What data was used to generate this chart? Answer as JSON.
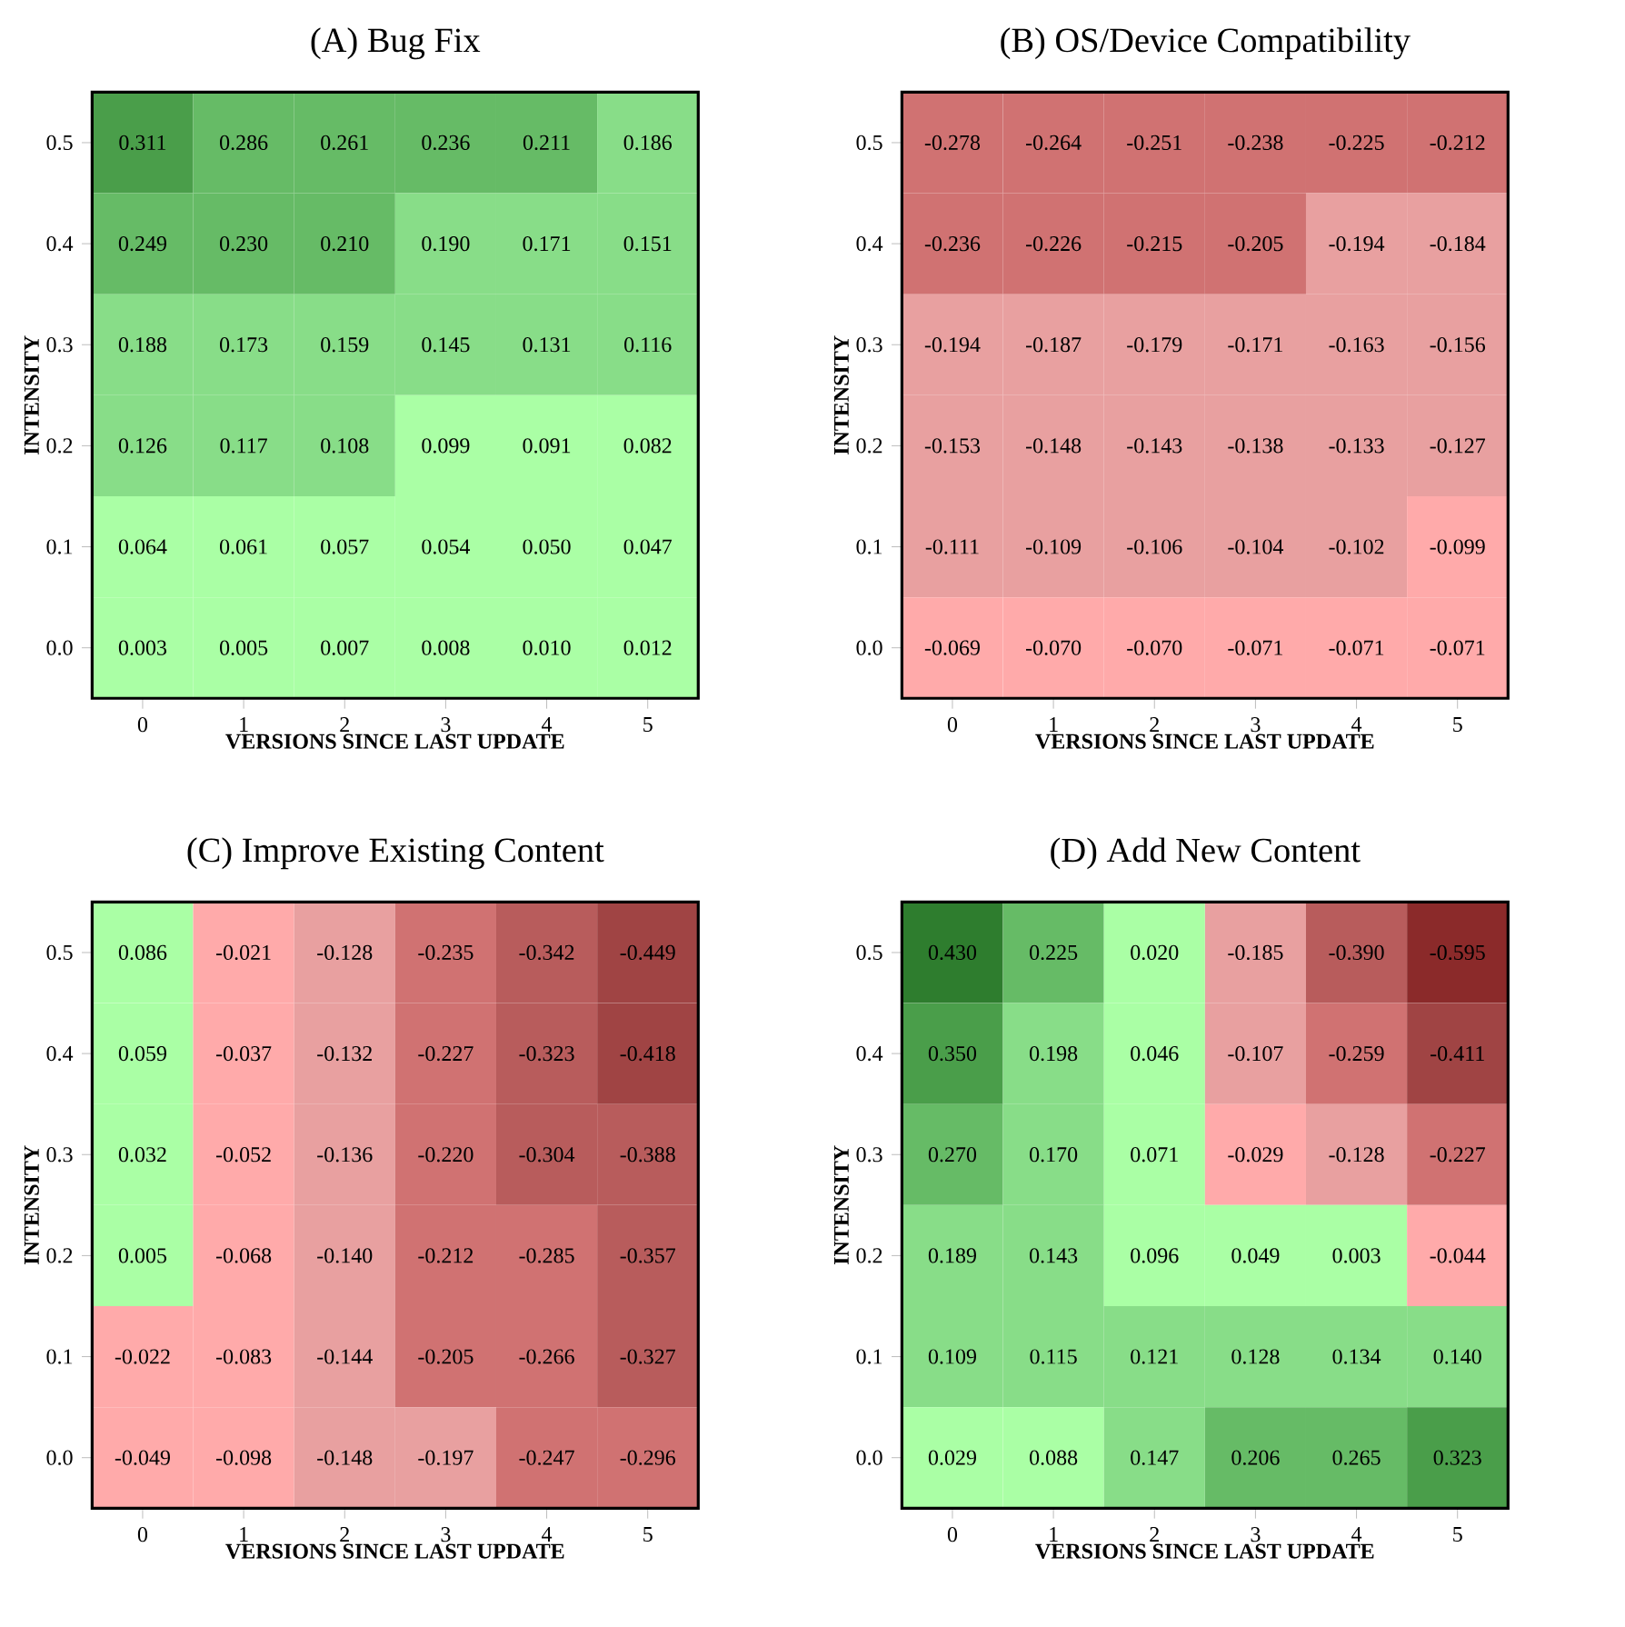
{
  "chart_data": [
    {
      "type": "heatmap",
      "title": "(A) Bug Fix",
      "xlabel": "VERSIONS SINCE LAST UPDATE",
      "ylabel": "INTENSITY",
      "categories": [
        "0",
        "1",
        "2",
        "3",
        "4",
        "5"
      ],
      "y_categories": [
        "0.5",
        "0.4",
        "0.3",
        "0.2",
        "0.1",
        "0.0"
      ],
      "data_labels": true,
      "cells": [
        [
          0.311,
          0.286,
          0.261,
          0.236,
          0.211,
          0.186
        ],
        [
          0.249,
          0.23,
          0.21,
          0.19,
          0.171,
          0.151
        ],
        [
          0.188,
          0.173,
          0.159,
          0.145,
          0.131,
          0.116
        ],
        [
          0.126,
          0.117,
          0.108,
          0.099,
          0.091,
          0.082
        ],
        [
          0.064,
          0.061,
          0.057,
          0.054,
          0.05,
          0.047
        ],
        [
          0.003,
          0.005,
          0.007,
          0.008,
          0.01,
          0.012
        ]
      ],
      "cell_labels": [
        [
          "0.311",
          "0.286",
          "0.261",
          "0.236",
          "0.211",
          "0.186"
        ],
        [
          "0.249",
          "0.230",
          "0.210",
          "0.190",
          "0.171",
          "0.151"
        ],
        [
          "0.188",
          "0.173",
          "0.159",
          "0.145",
          "0.131",
          "0.116"
        ],
        [
          "0.126",
          "0.117",
          "0.108",
          "0.099",
          "0.091",
          "0.082"
        ],
        [
          "0.064",
          "0.061",
          "0.057",
          "0.054",
          "0.050",
          "0.047"
        ],
        [
          "0.003",
          "0.005",
          "0.007",
          "0.008",
          "0.010",
          "0.012"
        ]
      ]
    },
    {
      "type": "heatmap",
      "title": "(B) OS/Device Compatibility",
      "xlabel": "VERSIONS SINCE LAST UPDATE",
      "ylabel": "INTENSITY",
      "categories": [
        "0",
        "1",
        "2",
        "3",
        "4",
        "5"
      ],
      "y_categories": [
        "0.5",
        "0.4",
        "0.3",
        "0.2",
        "0.1",
        "0.0"
      ],
      "data_labels": true,
      "cells": [
        [
          -0.278,
          -0.264,
          -0.251,
          -0.238,
          -0.225,
          -0.212
        ],
        [
          -0.236,
          -0.226,
          -0.215,
          -0.205,
          -0.194,
          -0.184
        ],
        [
          -0.194,
          -0.187,
          -0.179,
          -0.171,
          -0.163,
          -0.156
        ],
        [
          -0.153,
          -0.148,
          -0.143,
          -0.138,
          -0.133,
          -0.127
        ],
        [
          -0.111,
          -0.109,
          -0.106,
          -0.104,
          -0.102,
          -0.099
        ],
        [
          -0.069,
          -0.07,
          -0.07,
          -0.071,
          -0.071,
          -0.071
        ]
      ],
      "cell_labels": [
        [
          "-0.278",
          "-0.264",
          "-0.251",
          "-0.238",
          "-0.225",
          "-0.212"
        ],
        [
          "-0.236",
          "-0.226",
          "-0.215",
          "-0.205",
          "-0.194",
          "-0.184"
        ],
        [
          "-0.194",
          "-0.187",
          "-0.179",
          "-0.171",
          "-0.163",
          "-0.156"
        ],
        [
          "-0.153",
          "-0.148",
          "-0.143",
          "-0.138",
          "-0.133",
          "-0.127"
        ],
        [
          "-0.111",
          "-0.109",
          "-0.106",
          "-0.104",
          "-0.102",
          "-0.099"
        ],
        [
          "-0.069",
          "-0.070",
          "-0.070",
          "-0.071",
          "-0.071",
          "-0.071"
        ]
      ]
    },
    {
      "type": "heatmap",
      "title": "(C) Improve Existing Content",
      "xlabel": "VERSIONS SINCE LAST UPDATE",
      "ylabel": "INTENSITY",
      "categories": [
        "0",
        "1",
        "2",
        "3",
        "4",
        "5"
      ],
      "y_categories": [
        "0.5",
        "0.4",
        "0.3",
        "0.2",
        "0.1",
        "0.0"
      ],
      "data_labels": true,
      "cells": [
        [
          0.086,
          -0.021,
          -0.128,
          -0.235,
          -0.342,
          -0.449
        ],
        [
          0.059,
          -0.037,
          -0.132,
          -0.227,
          -0.323,
          -0.418
        ],
        [
          0.032,
          -0.052,
          -0.136,
          -0.22,
          -0.304,
          -0.388
        ],
        [
          0.005,
          -0.068,
          -0.14,
          -0.212,
          -0.285,
          -0.357
        ],
        [
          -0.022,
          -0.083,
          -0.144,
          -0.205,
          -0.266,
          -0.327
        ],
        [
          -0.049,
          -0.098,
          -0.148,
          -0.197,
          -0.247,
          -0.296
        ]
      ],
      "cell_labels": [
        [
          "0.086",
          "-0.021",
          "-0.128",
          "-0.235",
          "-0.342",
          "-0.449"
        ],
        [
          "0.059",
          "-0.037",
          "-0.132",
          "-0.227",
          "-0.323",
          "-0.418"
        ],
        [
          "0.032",
          "-0.052",
          "-0.136",
          "-0.220",
          "-0.304",
          "-0.388"
        ],
        [
          "0.005",
          "-0.068",
          "-0.140",
          "-0.212",
          "-0.285",
          "-0.357"
        ],
        [
          "-0.022",
          "-0.083",
          "-0.144",
          "-0.205",
          "-0.266",
          "-0.327"
        ],
        [
          "-0.049",
          "-0.098",
          "-0.148",
          "-0.197",
          "-0.247",
          "-0.296"
        ]
      ]
    },
    {
      "type": "heatmap",
      "title": "(D) Add New Content",
      "xlabel": "VERSIONS SINCE LAST UPDATE",
      "ylabel": "INTENSITY",
      "categories": [
        "0",
        "1",
        "2",
        "3",
        "4",
        "5"
      ],
      "y_categories": [
        "0.5",
        "0.4",
        "0.3",
        "0.2",
        "0.1",
        "0.0"
      ],
      "data_labels": true,
      "cells": [
        [
          0.43,
          0.225,
          0.02,
          -0.185,
          -0.39,
          -0.595
        ],
        [
          0.35,
          0.198,
          0.046,
          -0.107,
          -0.259,
          -0.411
        ],
        [
          0.27,
          0.17,
          0.071,
          -0.029,
          -0.128,
          -0.227
        ],
        [
          0.189,
          0.143,
          0.096,
          0.049,
          0.003,
          -0.044
        ],
        [
          0.109,
          0.115,
          0.121,
          0.128,
          0.134,
          0.14
        ],
        [
          0.029,
          0.088,
          0.147,
          0.206,
          0.265,
          0.323
        ]
      ],
      "cell_labels": [
        [
          "0.430",
          "0.225",
          "0.020",
          "-0.185",
          "-0.390",
          "-0.595"
        ],
        [
          "0.350",
          "0.198",
          "0.046",
          "-0.107",
          "-0.259",
          "-0.411"
        ],
        [
          "0.270",
          "0.170",
          "0.071",
          "-0.029",
          "-0.128",
          "-0.227"
        ],
        [
          "0.189",
          "0.143",
          "0.096",
          "0.049",
          "0.003",
          "-0.044"
        ],
        [
          "0.109",
          "0.115",
          "0.121",
          "0.128",
          "0.134",
          "0.140"
        ],
        [
          "0.029",
          "0.088",
          "0.147",
          "0.206",
          "0.265",
          "0.323"
        ]
      ]
    }
  ]
}
